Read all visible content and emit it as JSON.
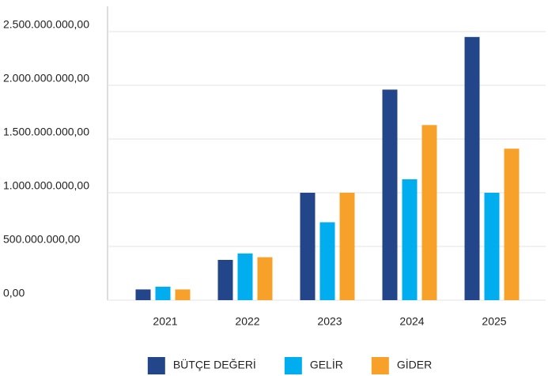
{
  "chart_data": {
    "type": "bar",
    "categories": [
      "2021",
      "2022",
      "2023",
      "2024",
      "2025"
    ],
    "series": [
      {
        "name": "BÜTÇE DEĞERİ",
        "color": "#23468a",
        "values": [
          100000000,
          375000000,
          1000000000,
          1960000000,
          2450000000
        ]
      },
      {
        "name": "GELİR",
        "color": "#00aeef",
        "values": [
          125000000,
          435000000,
          725000000,
          1125000000,
          1000000000
        ]
      },
      {
        "name": "GİDER",
        "color": "#f7a12b",
        "values": [
          100000000,
          400000000,
          1000000000,
          1630000000,
          1410000000
        ]
      }
    ],
    "ylim": [
      0,
      2500000000
    ],
    "yticks": [
      {
        "value": 0,
        "label": "0,00"
      },
      {
        "value": 500000000,
        "label": "500.000.000,00"
      },
      {
        "value": 1000000000,
        "label": "1.000.000.000,00"
      },
      {
        "value": 1500000000,
        "label": "1.500.000.000,00"
      },
      {
        "value": 2000000000,
        "label": "2.000.000.000,00"
      },
      {
        "value": 2500000000,
        "label": "2.500.000.000,00"
      }
    ],
    "grid": true,
    "legend": "bottom"
  }
}
